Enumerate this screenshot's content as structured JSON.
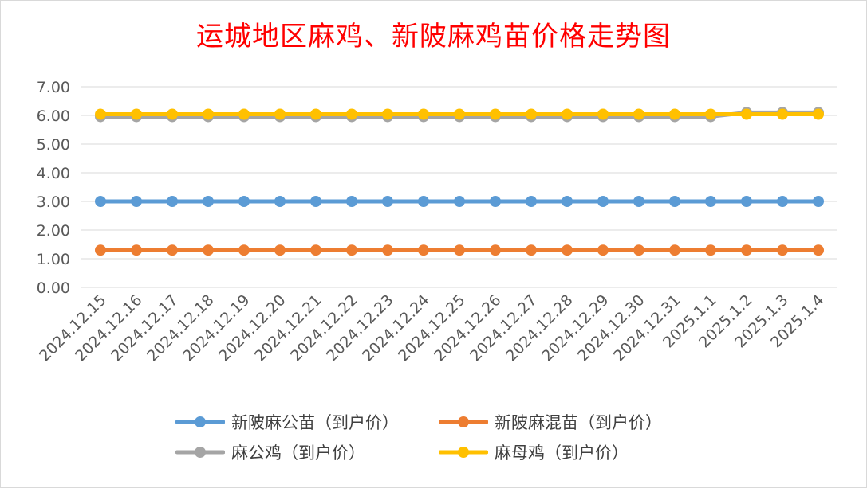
{
  "chart_data": {
    "type": "line",
    "title": "运城地区麻鸡、新陂麻鸡苗价格走势图",
    "categories": [
      "2024.12.15",
      "2024.12.16",
      "2024.12.17",
      "2024.12.18",
      "2024.12.19",
      "2024.12.20",
      "2024.12.21",
      "2024.12.22",
      "2024.12.23",
      "2024.12.24",
      "2024.12.25",
      "2024.12.26",
      "2024.12.27",
      "2024.12.28",
      "2024.12.29",
      "2024.12.30",
      "2024.12.31",
      "2025.1.1",
      "2025.1.2",
      "2025.1.3",
      "2025.1.4"
    ],
    "ylim": [
      0,
      7
    ],
    "yticks": [
      "0.00",
      "1.00",
      "2.00",
      "3.00",
      "4.00",
      "5.00",
      "6.00",
      "7.00"
    ],
    "grid": true,
    "legend_position": "bottom",
    "series": [
      {
        "name": "新陂麻公苗（到户价）",
        "color": "#5b9bd5",
        "values": [
          3,
          3,
          3,
          3,
          3,
          3,
          3,
          3,
          3,
          3,
          3,
          3,
          3,
          3,
          3,
          3,
          3,
          3,
          3,
          3,
          3
        ]
      },
      {
        "name": "新陂麻混苗（到户价）",
        "color": "#ed7d31",
        "values": [
          1.3,
          1.3,
          1.3,
          1.3,
          1.3,
          1.3,
          1.3,
          1.3,
          1.3,
          1.3,
          1.3,
          1.3,
          1.3,
          1.3,
          1.3,
          1.3,
          1.3,
          1.3,
          1.3,
          1.3,
          1.3
        ]
      },
      {
        "name": "麻公鸡（到户价）",
        "color": "#a5a5a5",
        "values": [
          5.96,
          5.96,
          5.96,
          5.96,
          5.96,
          5.96,
          5.96,
          5.96,
          5.96,
          5.96,
          5.96,
          5.96,
          5.96,
          5.96,
          5.96,
          5.96,
          5.96,
          5.96,
          6.1,
          6.1,
          6.1
        ]
      },
      {
        "name": "麻母鸡（到户价）",
        "color": "#ffc000",
        "values": [
          6.04,
          6.04,
          6.04,
          6.04,
          6.04,
          6.04,
          6.04,
          6.04,
          6.04,
          6.04,
          6.04,
          6.04,
          6.04,
          6.04,
          6.04,
          6.04,
          6.04,
          6.04,
          6.04,
          6.04,
          6.04
        ]
      }
    ]
  }
}
